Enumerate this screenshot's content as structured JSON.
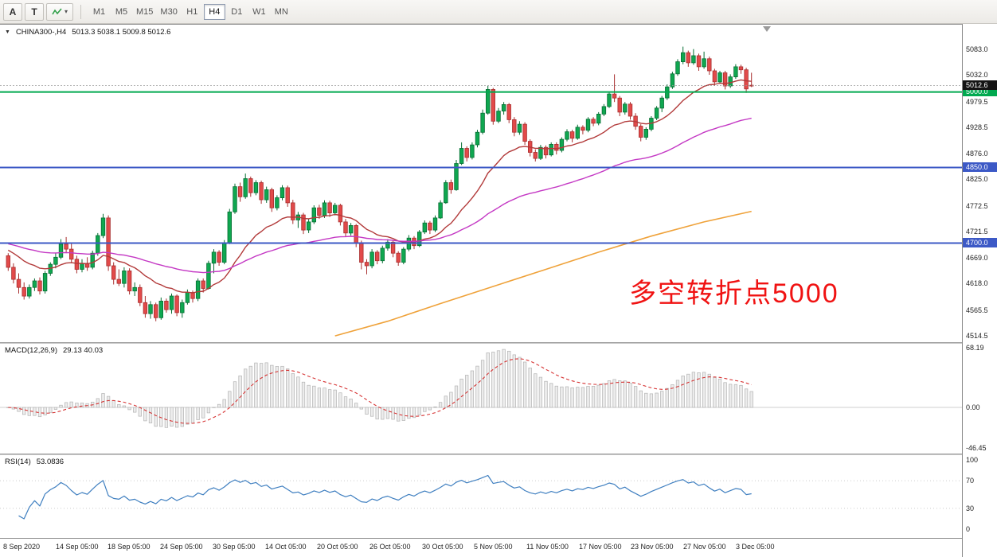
{
  "toolbar": {
    "tools": [
      {
        "label": "A"
      },
      {
        "label": "T"
      }
    ],
    "dropdown_caret": "▾",
    "timeframes": [
      "M1",
      "M5",
      "M15",
      "M30",
      "H1",
      "H4",
      "D1",
      "W1",
      "MN"
    ],
    "active_timeframe": "H4"
  },
  "chart": {
    "menu_icon": "▼",
    "title_symbol": "CHINA300-,H4",
    "title_ohlc": "5013.3 5038.1 5009.8 5012.6",
    "annotation": {
      "text": "多空转折点5000",
      "color": "#f01212"
    }
  },
  "chart_data": {
    "type": "candlestick",
    "symbol": "CHINA300-",
    "timeframe": "H4",
    "ohlc_current": {
      "open": 5013.3,
      "high": 5038.1,
      "low": 5009.8,
      "close": 5012.6
    },
    "ylim": [
      4514.5,
      5083.0
    ],
    "price_axis_labels": [
      {
        "t": "5083.0",
        "v": 5083.0
      },
      {
        "t": "5032.0",
        "v": 5032.0
      },
      {
        "t": "4979.5",
        "v": 4979.5
      },
      {
        "t": "4928.5",
        "v": 4928.5
      },
      {
        "t": "4876.0",
        "v": 4876.0
      },
      {
        "t": "4825.0",
        "v": 4825.0
      },
      {
        "t": "4772.5",
        "v": 4772.5
      },
      {
        "t": "4721.5",
        "v": 4721.5
      },
      {
        "t": "4669.0",
        "v": 4669.0
      },
      {
        "t": "4618.0",
        "v": 4618.0
      },
      {
        "t": "4565.5",
        "v": 4565.5
      },
      {
        "t": "4514.5",
        "v": 4514.5
      }
    ],
    "time_labels": [
      "8 Sep 2020",
      "14 Sep 05:00",
      "18 Sep 05:00",
      "24 Sep 05:00",
      "30 Sep 05:00",
      "14 Oct 05:00",
      "20 Oct 05:00",
      "26 Oct 05:00",
      "30 Oct 05:00",
      "5 Nov 05:00",
      "11 Nov 05:00",
      "17 Nov 05:00",
      "23 Nov 05:00",
      "27 Nov 05:00",
      "3 Dec 05:00"
    ],
    "levels": [
      {
        "price": 5000.0,
        "label": "5000.0",
        "color": "#00a94f"
      },
      {
        "price": 4850.0,
        "label": "4850.0",
        "color": "#3c59c6"
      },
      {
        "price": 4700.0,
        "label": "4700.0",
        "color": "#3c59c6"
      }
    ],
    "current_price_badge": {
      "value": "5012.6",
      "bg": "#141414"
    },
    "moving_averages": [
      {
        "name": "ma-fast",
        "color": "#b23a3a",
        "period": 18,
        "seed": 4690
      },
      {
        "name": "ma-medium",
        "color": "#c438c4",
        "period": 60,
        "seed": 4700
      },
      {
        "name": "ma-slow",
        "color": "#efa23a",
        "anchors": [
          [
            62,
            4516
          ],
          [
            72,
            4545
          ],
          [
            82,
            4580
          ],
          [
            92,
            4614
          ],
          [
            102,
            4648
          ],
          [
            112,
            4682
          ],
          [
            122,
            4714
          ],
          [
            132,
            4742
          ],
          [
            141,
            4763
          ]
        ]
      }
    ],
    "macd": {
      "label": "MACD(12,26,9)",
      "values_text": "29.13 40.03",
      "fast": 12,
      "slow": 26,
      "signal": 9,
      "axis_labels": [
        "68.19",
        "0.00",
        "-46.45"
      ],
      "axis_values": [
        68.19,
        0,
        -46.45
      ]
    },
    "rsi": {
      "label": "RSI(14)",
      "value_text": "53.0836",
      "period": 14,
      "axis_labels": [
        "100",
        "70",
        "30",
        "0"
      ],
      "axis_values": [
        100,
        70,
        30,
        0
      ],
      "levels": [
        70,
        30
      ]
    },
    "style": {
      "up_color": "#0fa750",
      "up_stroke": "#076e33",
      "down_color": "#e24a4a",
      "down_stroke": "#a92f2f",
      "macd_fill": "#ececec",
      "macd_stroke": "#b3b3b3",
      "macd_signal": "#d63333",
      "rsi_color": "#3f7fc0"
    },
    "candles": [
      [
        4675,
        4680,
        4645,
        4652
      ],
      [
        4652,
        4660,
        4620,
        4628
      ],
      [
        4628,
        4640,
        4600,
        4612
      ],
      [
        4612,
        4622,
        4588,
        4595
      ],
      [
        4595,
        4618,
        4590,
        4612
      ],
      [
        4612,
        4630,
        4605,
        4625
      ],
      [
        4625,
        4632,
        4598,
        4605
      ],
      [
        4605,
        4645,
        4600,
        4640
      ],
      [
        4640,
        4662,
        4635,
        4658
      ],
      [
        4658,
        4680,
        4650,
        4672
      ],
      [
        4672,
        4708,
        4668,
        4698
      ],
      [
        4698,
        4712,
        4680,
        4688
      ],
      [
        4688,
        4700,
        4660,
        4668
      ],
      [
        4668,
        4675,
        4640,
        4648
      ],
      [
        4648,
        4668,
        4642,
        4660
      ],
      [
        4660,
        4672,
        4645,
        4652
      ],
      [
        4652,
        4685,
        4648,
        4680
      ],
      [
        4680,
        4720,
        4675,
        4715
      ],
      [
        4715,
        4758,
        4710,
        4750
      ],
      [
        4750,
        4755,
        4645,
        4655
      ],
      [
        4655,
        4662,
        4618,
        4628
      ],
      [
        4628,
        4648,
        4615,
        4620
      ],
      [
        4620,
        4652,
        4612,
        4645
      ],
      [
        4645,
        4650,
        4598,
        4605
      ],
      [
        4605,
        4622,
        4595,
        4612
      ],
      [
        4612,
        4618,
        4575,
        4582
      ],
      [
        4582,
        4595,
        4552,
        4560
      ],
      [
        4560,
        4585,
        4550,
        4578
      ],
      [
        4578,
        4582,
        4545,
        4552
      ],
      [
        4552,
        4592,
        4548,
        4585
      ],
      [
        4585,
        4590,
        4562,
        4568
      ],
      [
        4568,
        4600,
        4560,
        4595
      ],
      [
        4595,
        4598,
        4555,
        4562
      ],
      [
        4562,
        4588,
        4552,
        4582
      ],
      [
        4582,
        4608,
        4578,
        4602
      ],
      [
        4602,
        4606,
        4582,
        4590
      ],
      [
        4590,
        4630,
        4585,
        4625
      ],
      [
        4625,
        4630,
        4602,
        4610
      ],
      [
        4610,
        4665,
        4608,
        4660
      ],
      [
        4660,
        4688,
        4640,
        4682
      ],
      [
        4682,
        4686,
        4655,
        4662
      ],
      [
        4662,
        4706,
        4658,
        4700
      ],
      [
        4700,
        4768,
        4698,
        4762
      ],
      [
        4762,
        4818,
        4758,
        4812
      ],
      [
        4812,
        4820,
        4782,
        4792
      ],
      [
        4792,
        4838,
        4788,
        4828
      ],
      [
        4828,
        4832,
        4792,
        4800
      ],
      [
        4800,
        4825,
        4795,
        4820
      ],
      [
        4820,
        4824,
        4778,
        4786
      ],
      [
        4786,
        4812,
        4780,
        4806
      ],
      [
        4806,
        4810,
        4762,
        4770
      ],
      [
        4770,
        4795,
        4765,
        4790
      ],
      [
        4790,
        4815,
        4785,
        4810
      ],
      [
        4810,
        4814,
        4772,
        4780
      ],
      [
        4780,
        4786,
        4738,
        4746
      ],
      [
        4746,
        4762,
        4730,
        4756
      ],
      [
        4756,
        4760,
        4718,
        4726
      ],
      [
        4726,
        4748,
        4720,
        4742
      ],
      [
        4742,
        4775,
        4738,
        4770
      ],
      [
        4770,
        4776,
        4748,
        4755
      ],
      [
        4755,
        4785,
        4750,
        4780
      ],
      [
        4780,
        4784,
        4752,
        4760
      ],
      [
        4760,
        4780,
        4755,
        4775
      ],
      [
        4775,
        4778,
        4735,
        4742
      ],
      [
        4742,
        4748,
        4712,
        4720
      ],
      [
        4720,
        4740,
        4715,
        4735
      ],
      [
        4735,
        4738,
        4692,
        4700
      ],
      [
        4700,
        4705,
        4648,
        4662
      ],
      [
        4662,
        4668,
        4638,
        4655
      ],
      [
        4655,
        4688,
        4650,
        4682
      ],
      [
        4682,
        4686,
        4658,
        4665
      ],
      [
        4665,
        4695,
        4660,
        4690
      ],
      [
        4690,
        4708,
        4685,
        4702
      ],
      [
        4702,
        4706,
        4672,
        4680
      ],
      [
        4680,
        4684,
        4655,
        4662
      ],
      [
        4662,
        4692,
        4658,
        4688
      ],
      [
        4688,
        4716,
        4684,
        4710
      ],
      [
        4710,
        4714,
        4688,
        4695
      ],
      [
        4695,
        4726,
        4692,
        4722
      ],
      [
        4722,
        4745,
        4718,
        4740
      ],
      [
        4740,
        4744,
        4718,
        4726
      ],
      [
        4726,
        4755,
        4722,
        4750
      ],
      [
        4750,
        4785,
        4748,
        4780
      ],
      [
        4780,
        4825,
        4778,
        4820
      ],
      [
        4820,
        4826,
        4798,
        4806
      ],
      [
        4806,
        4865,
        4804,
        4858
      ],
      [
        4858,
        4900,
        4855,
        4888
      ],
      [
        4888,
        4892,
        4862,
        4870
      ],
      [
        4870,
        4900,
        4866,
        4895
      ],
      [
        4895,
        4925,
        4890,
        4920
      ],
      [
        4920,
        4965,
        4916,
        4958
      ],
      [
        4958,
        5012,
        4955,
        5005
      ],
      [
        5005,
        5008,
        4935,
        4942
      ],
      [
        4942,
        4968,
        4938,
        4962
      ],
      [
        4962,
        4980,
        4955,
        4975
      ],
      [
        4975,
        4978,
        4938,
        4945
      ],
      [
        4945,
        4950,
        4912,
        4920
      ],
      [
        4920,
        4942,
        4915,
        4936
      ],
      [
        4936,
        4940,
        4895,
        4902
      ],
      [
        4902,
        4906,
        4872,
        4880
      ],
      [
        4880,
        4886,
        4862,
        4868
      ],
      [
        4868,
        4895,
        4865,
        4890
      ],
      [
        4890,
        4894,
        4868,
        4875
      ],
      [
        4875,
        4900,
        4872,
        4896
      ],
      [
        4896,
        4900,
        4876,
        4884
      ],
      [
        4884,
        4910,
        4880,
        4906
      ],
      [
        4906,
        4926,
        4902,
        4921
      ],
      [
        4921,
        4925,
        4900,
        4908
      ],
      [
        4908,
        4935,
        4905,
        4930
      ],
      [
        4930,
        4934,
        4916,
        4924
      ],
      [
        4924,
        4950,
        4920,
        4946
      ],
      [
        4946,
        4950,
        4932,
        4938
      ],
      [
        4938,
        4960,
        4934,
        4956
      ],
      [
        4956,
        4976,
        4952,
        4971
      ],
      [
        4971,
        5000,
        4968,
        4996
      ],
      [
        4996,
        5035,
        4980,
        4988
      ],
      [
        4988,
        4992,
        4952,
        4960
      ],
      [
        4960,
        4980,
        4955,
        4976
      ],
      [
        4976,
        4980,
        4945,
        4952
      ],
      [
        4952,
        4958,
        4925,
        4932
      ],
      [
        4932,
        4936,
        4902,
        4910
      ],
      [
        4910,
        4930,
        4905,
        4926
      ],
      [
        4926,
        4952,
        4922,
        4948
      ],
      [
        4948,
        4972,
        4944,
        4968
      ],
      [
        4968,
        4992,
        4960,
        4988
      ],
      [
        4988,
        5015,
        4984,
        5010
      ],
      [
        5010,
        5040,
        5006,
        5036
      ],
      [
        5036,
        5065,
        5032,
        5060
      ],
      [
        5060,
        5090,
        5055,
        5078
      ],
      [
        5078,
        5082,
        5050,
        5058
      ],
      [
        5058,
        5085,
        5054,
        5072
      ],
      [
        5072,
        5076,
        5042,
        5050
      ],
      [
        5050,
        5080,
        5046,
        5066
      ],
      [
        5066,
        5070,
        5034,
        5042
      ],
      [
        5042,
        5046,
        5012,
        5020
      ],
      [
        5020,
        5042,
        5016,
        5038
      ],
      [
        5038,
        5042,
        5005,
        5012
      ],
      [
        5012,
        5035,
        5008,
        5030
      ],
      [
        5030,
        5055,
        5026,
        5050
      ],
      [
        5050,
        5054,
        5036,
        5044
      ],
      [
        5044,
        5048,
        4998,
        5006
      ],
      [
        5013.3,
        5038.1,
        5009.8,
        5012.6
      ]
    ]
  }
}
